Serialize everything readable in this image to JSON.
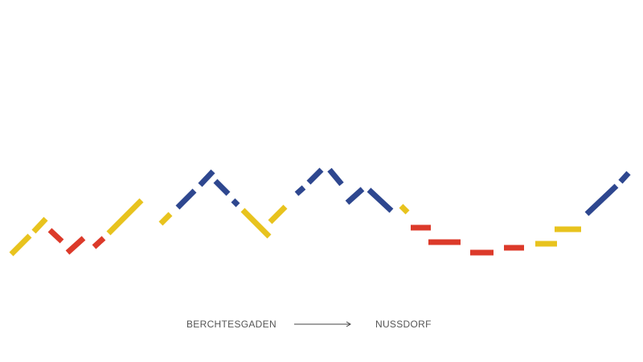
{
  "route": {
    "start": "BERCHTESGADEN",
    "end": "NUSSDORF"
  },
  "colors": {
    "yellow": "#e8c31e",
    "red": "#dc3a2a",
    "blue": "#2e478f",
    "text": "#555555",
    "arrow": "#444444"
  },
  "segments": [
    {
      "color": "yellow"
    },
    {
      "color": "yellow"
    },
    {
      "color": "red"
    },
    {
      "color": "red"
    },
    {
      "color": "red"
    },
    {
      "color": "yellow"
    },
    {
      "color": "yellow"
    },
    {
      "color": "blue"
    },
    {
      "color": "blue"
    },
    {
      "color": "blue"
    },
    {
      "color": "blue"
    },
    {
      "color": "yellow"
    },
    {
      "color": "yellow"
    },
    {
      "color": "blue"
    },
    {
      "color": "blue"
    },
    {
      "color": "blue"
    },
    {
      "color": "blue"
    },
    {
      "color": "blue"
    },
    {
      "color": "yellow"
    },
    {
      "color": "red"
    },
    {
      "color": "red"
    },
    {
      "color": "red"
    },
    {
      "color": "red"
    },
    {
      "color": "yellow"
    },
    {
      "color": "yellow"
    },
    {
      "color": "blue"
    }
  ]
}
